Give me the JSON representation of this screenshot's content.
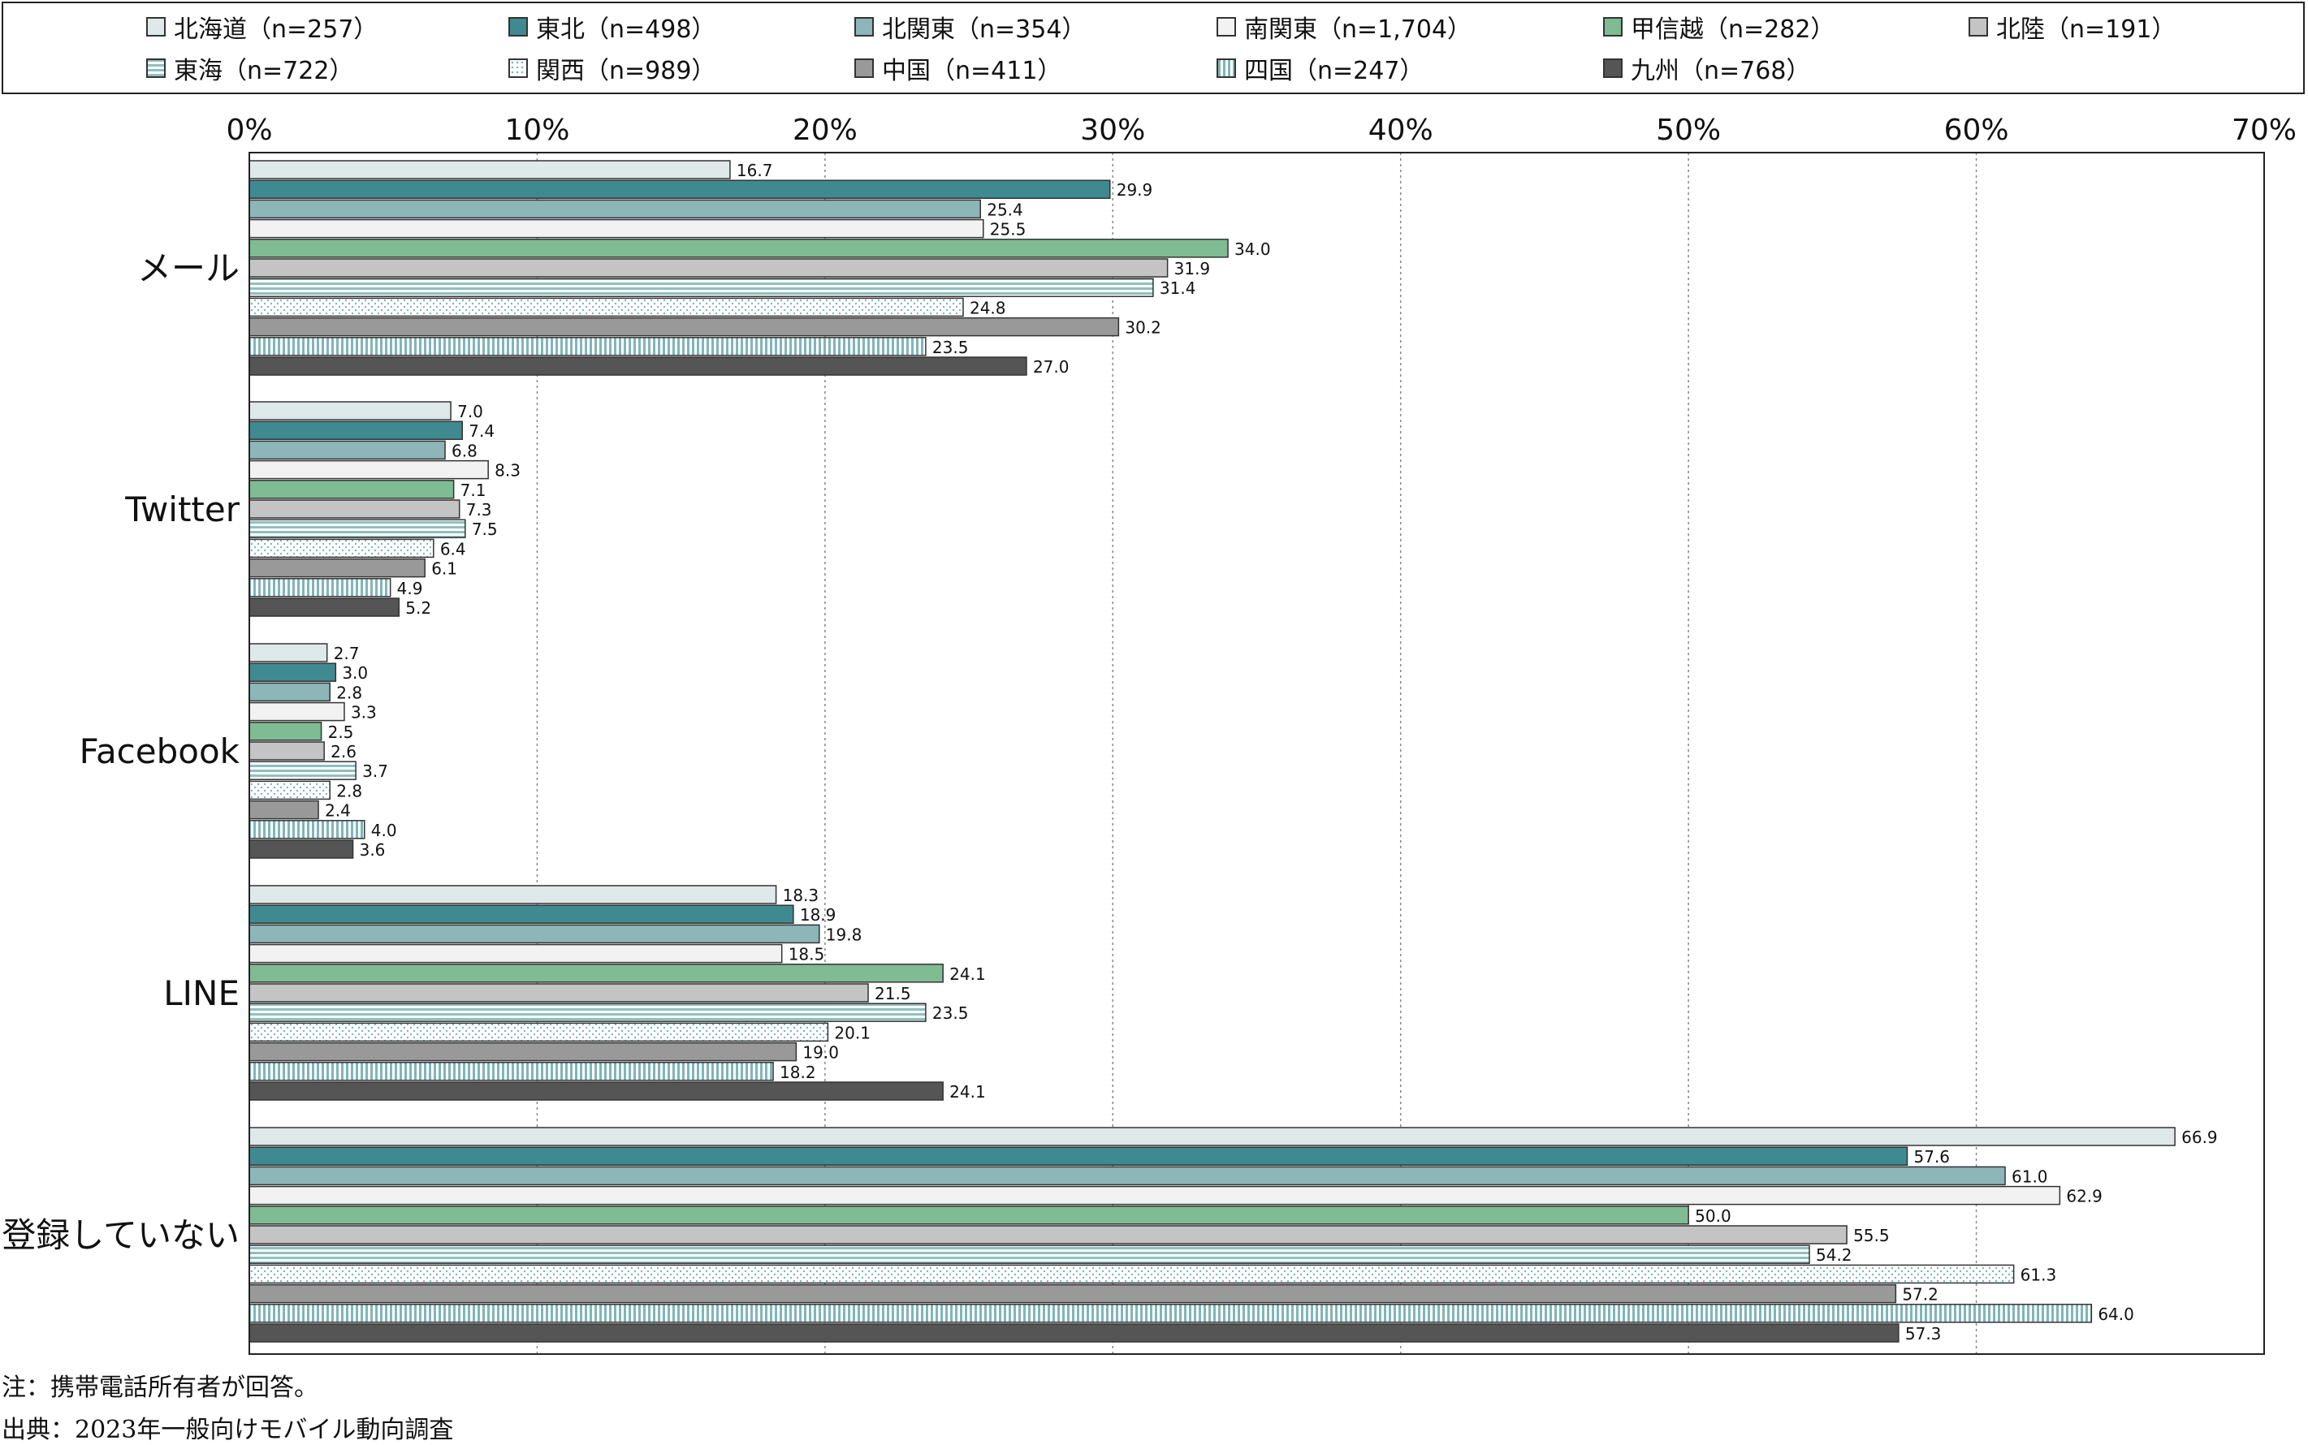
{
  "legend": [
    {
      "name": "北海道（n=257）",
      "color": "#dfe9e9",
      "pattern": "none"
    },
    {
      "name": "東北（n=498）",
      "color": "#3f8a90",
      "pattern": "none"
    },
    {
      "name": "北関東（n=354）",
      "color": "#8cb6b8",
      "pattern": "none"
    },
    {
      "name": "南関東（n=1,704）",
      "color": "#f2f2f2",
      "pattern": "none"
    },
    {
      "name": "甲信越（n=282）",
      "color": "#7fbb93",
      "pattern": "none"
    },
    {
      "name": "北陸（n=191）",
      "color": "#c4c4c4",
      "pattern": "none"
    },
    {
      "name": "東海（n=722）",
      "color": "#9fc8c8",
      "pattern": "hstripe"
    },
    {
      "name": "関西（n=989）",
      "color": "#ffffff",
      "pattern": "dots"
    },
    {
      "name": "中国（n=411）",
      "color": "#999999",
      "pattern": "none"
    },
    {
      "name": "四国（n=247）",
      "color": "#a9d0d2",
      "pattern": "vstripe"
    },
    {
      "name": "九州（n=768）",
      "color": "#555555",
      "pattern": "none"
    }
  ],
  "chart_data": {
    "type": "bar",
    "orientation": "horizontal",
    "categories": [
      "メール",
      "Twitter",
      "Facebook",
      "LINE",
      "登録していない"
    ],
    "xlim": [
      0,
      70
    ],
    "x_ticks": [
      "0%",
      "10%",
      "20%",
      "30%",
      "40%",
      "50%",
      "60%",
      "70%"
    ],
    "x_tick_values": [
      0,
      10,
      20,
      30,
      40,
      50,
      60,
      70
    ],
    "grid": true,
    "legend_position": "top",
    "series": [
      {
        "name": "北海道（n=257）",
        "values": [
          16.7,
          7.0,
          2.7,
          18.3,
          66.9
        ]
      },
      {
        "name": "東北（n=498）",
        "values": [
          29.9,
          7.4,
          3.0,
          18.9,
          57.6
        ]
      },
      {
        "name": "北関東（n=354）",
        "values": [
          25.4,
          6.8,
          2.8,
          19.8,
          61.0
        ]
      },
      {
        "name": "南関東（n=1,704）",
        "values": [
          25.5,
          8.3,
          3.3,
          18.5,
          62.9
        ]
      },
      {
        "name": "甲信越（n=282）",
        "values": [
          34.0,
          7.1,
          2.5,
          24.1,
          50.0
        ]
      },
      {
        "name": "北陸（n=191）",
        "values": [
          31.9,
          7.3,
          2.6,
          21.5,
          55.5
        ]
      },
      {
        "name": "東海（n=722）",
        "values": [
          31.4,
          7.5,
          3.7,
          23.5,
          54.2
        ]
      },
      {
        "name": "関西（n=989）",
        "values": [
          24.8,
          6.4,
          2.8,
          20.1,
          61.3
        ]
      },
      {
        "name": "中国（n=411）",
        "values": [
          30.2,
          6.1,
          2.4,
          19.0,
          57.2
        ]
      },
      {
        "name": "四国（n=247）",
        "values": [
          23.5,
          4.9,
          4.0,
          18.2,
          64.0
        ]
      },
      {
        "name": "九州（n=768）",
        "values": [
          27.0,
          5.2,
          3.6,
          24.1,
          57.3
        ]
      }
    ]
  },
  "notes": {
    "note1": "注：携帯電話所有者が回答。",
    "note2": "出典：2023年一般向けモバイル動向調査"
  }
}
